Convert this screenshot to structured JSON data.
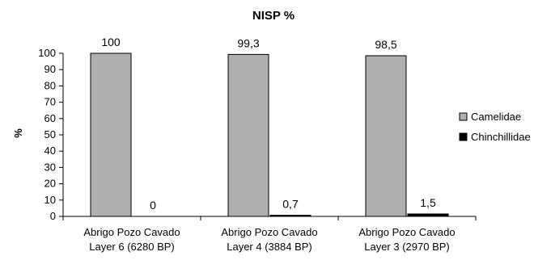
{
  "chart_data": {
    "type": "bar",
    "title": "NISP %",
    "xlabel": "",
    "ylabel": "%",
    "ylim": [
      0,
      100
    ],
    "yticks": [
      0,
      10,
      20,
      30,
      40,
      50,
      60,
      70,
      80,
      90,
      100
    ],
    "grid": false,
    "legend": "right",
    "categories": [
      [
        "Abrigo Pozo Cavado",
        "Layer 6 (6280 BP)"
      ],
      [
        "Abrigo Pozo Cavado",
        "Layer 4 (3884 BP)"
      ],
      [
        "Abrigo Pozo Cavado",
        "Layer 3 (2970 BP)"
      ]
    ],
    "series": [
      {
        "name": "Camelidae",
        "values": [
          100,
          99.3,
          98.5
        ],
        "labels": [
          "100",
          "99,3",
          "98,5"
        ],
        "color": "#b0b0b0"
      },
      {
        "name": "Chinchillidae",
        "values": [
          0,
          0.7,
          1.5
        ],
        "labels": [
          "0",
          "0,7",
          "1,5"
        ],
        "color": "#000000"
      }
    ]
  }
}
